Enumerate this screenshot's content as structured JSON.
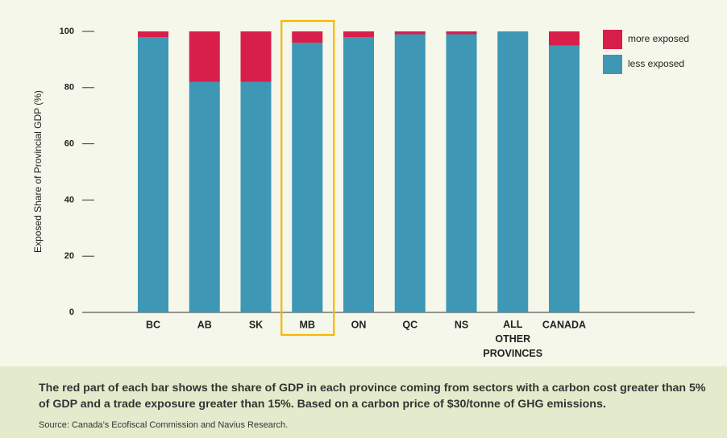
{
  "chart_data": {
    "type": "stacked_bar",
    "y_label": "Exposed Share of Provincial GDP  (%)",
    "categories": [
      "BC",
      "AB",
      "SK",
      "MB",
      "ON",
      "QC",
      "NS",
      "ALL OTHER PROVINCES",
      "CANADA"
    ],
    "series": [
      {
        "name": "more exposed",
        "color": "#d81e4a",
        "values": [
          2,
          18,
          18,
          4,
          2,
          1,
          1,
          0,
          5
        ]
      },
      {
        "name": "less exposed",
        "color": "#3d97b5",
        "values": [
          98,
          82,
          82,
          96,
          98,
          99,
          99,
          100,
          95
        ]
      }
    ],
    "ylim": [
      0,
      100
    ],
    "yticks": [
      0,
      20,
      40,
      60,
      80,
      100
    ],
    "highlight": "MB",
    "highlight_color": "#f5b800",
    "caption": "The red part of each bar shows the share of GDP in each province coming from sectors with a carbon cost greater than 5% of GDP and a trade exposure greater than 15%. Based on a carbon price of $30/tonne of GHG emissions.",
    "source": "Source: Canada’s Ecofiscal Commission and Navius Research."
  }
}
